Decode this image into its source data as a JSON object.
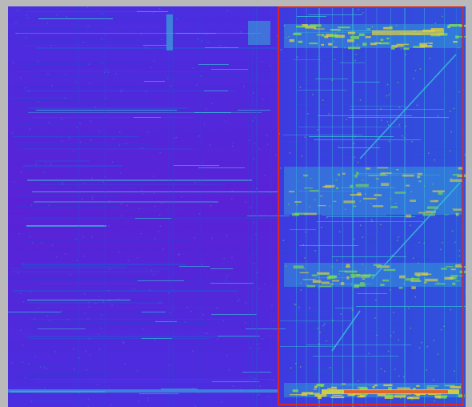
{
  "image": {
    "subject": "",
    "colors": {
      "page_background": "#b9b9b9",
      "base": "#6a16c6",
      "band_blue": "#2f4bd8",
      "band_cyan": "#35c6d8",
      "band_green": "#7be24a",
      "band_yellow": "#e3d23a",
      "hot": "#e2532a",
      "selection_border": "#e0261c"
    }
  },
  "selection": {
    "shape": "rectangle"
  }
}
